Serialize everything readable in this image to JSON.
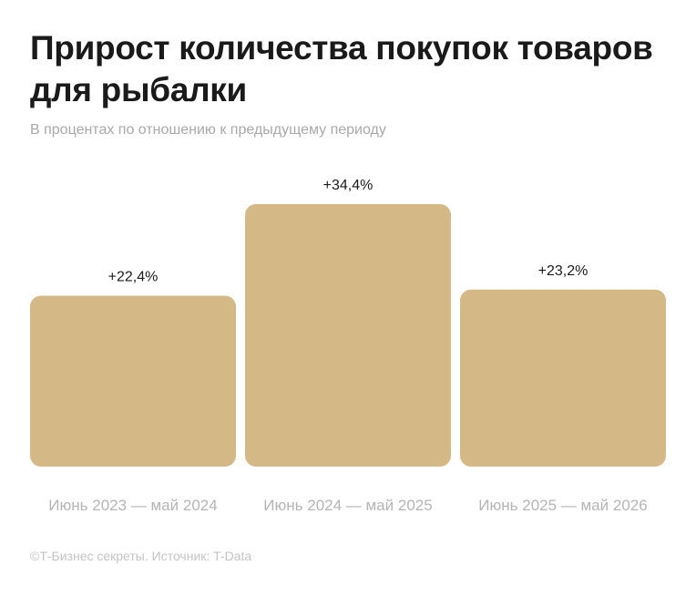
{
  "header": {
    "title": "Прирост количества покупок товаров для рыбалки",
    "subtitle": "В процентах по отношению к предыдущему периоду"
  },
  "footer": {
    "source": "©Т-Бизнес секреты. Источник: T-Data"
  },
  "colors": {
    "bar": "#d4b886",
    "value_label": "#1a1a1a",
    "category_label": "#b5b5b5"
  },
  "chart_data": {
    "type": "bar",
    "title": "Прирост количества покупок товаров для рыбалки",
    "subtitle": "В процентах по отношению к предыдущему периоду",
    "xlabel": "",
    "ylabel": "",
    "categories": [
      "Июнь 2023 — май 2024",
      "Июнь 2024 — май 2025",
      "Июнь 2025 — май 2026"
    ],
    "values": [
      22.4,
      34.4,
      23.2
    ],
    "value_labels": [
      "+22,4%",
      "+34,4%",
      "+23,2%"
    ],
    "grid": false,
    "legend": "none"
  }
}
